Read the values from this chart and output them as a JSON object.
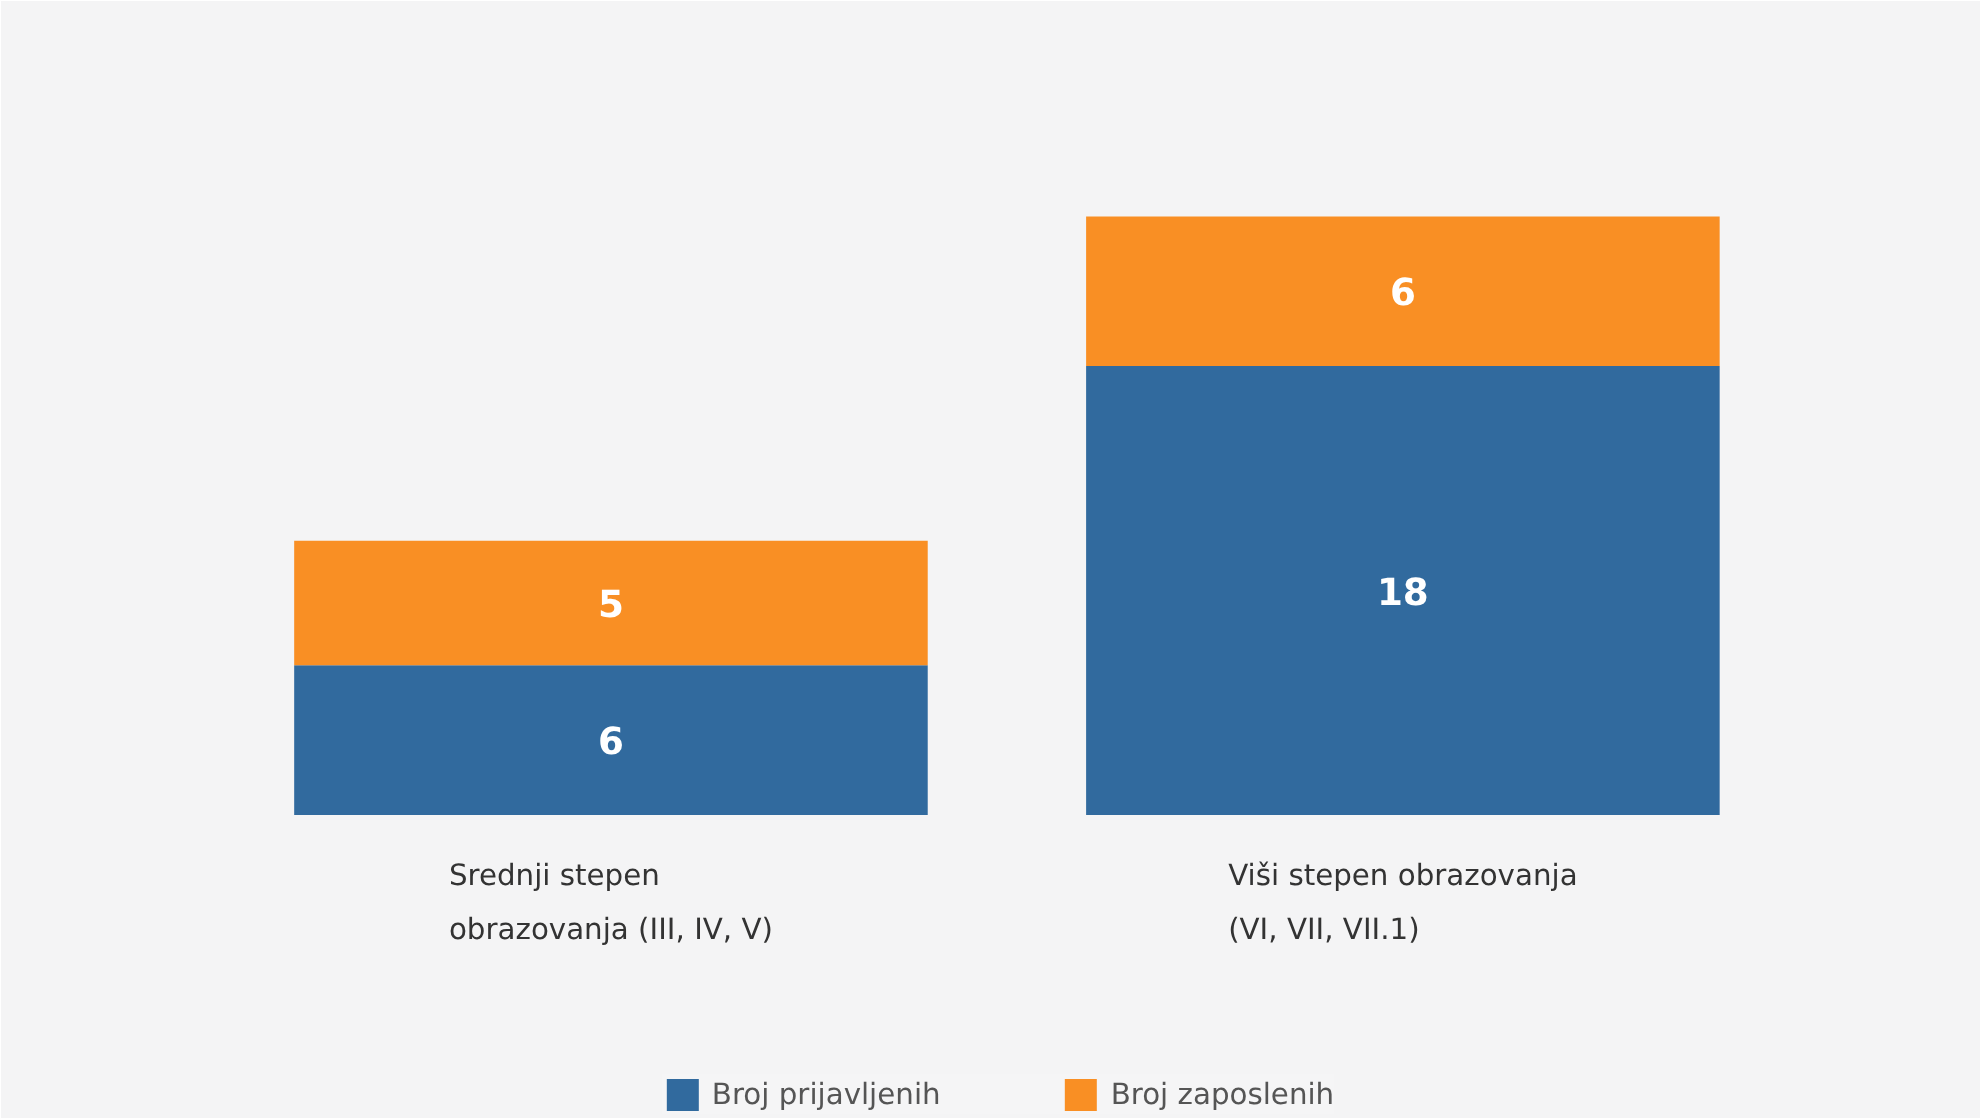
{
  "chart_data": {
    "type": "bar",
    "stacked": true,
    "categories": [
      "Srednji stepen obrazovanja (III, IV, V)",
      "Viši stepen obrazovanja (VI, VII, VII.1)"
    ],
    "series": [
      {
        "name": "Broj prijavljenih",
        "color": "#316a9e",
        "values": [
          6,
          18
        ]
      },
      {
        "name": "Broj zaposlenih",
        "color": "#f98f24",
        "values": [
          5,
          6
        ]
      }
    ],
    "tick_labels": "x",
    "data_labels": true,
    "legend": "bottom"
  }
}
